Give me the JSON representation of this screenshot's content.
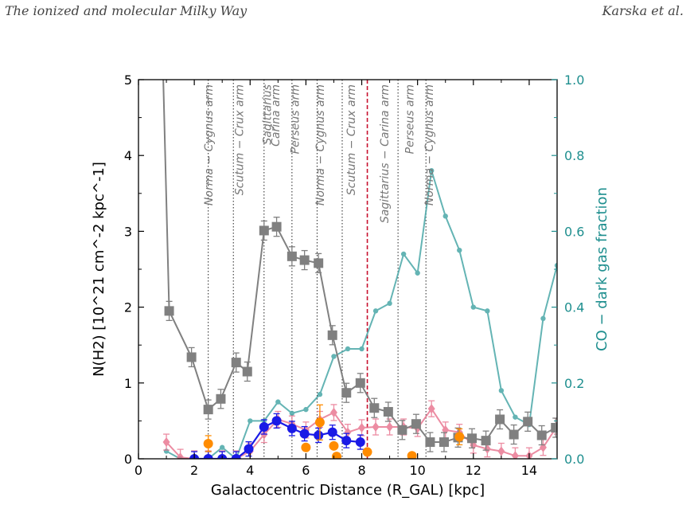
{
  "header": {
    "left": "The ionized and molecular Milky Way",
    "right": "Karska et al."
  },
  "chart_data": {
    "type": "line",
    "xlabel": "Galactocentric Distance (R_GAL) [kpc]",
    "ylabel": "N(H2) [10^21 cm^-2 kpc^-1]",
    "y2label": "CO − dark gas fraction",
    "xlim": [
      0,
      15
    ],
    "ylim": [
      0,
      5
    ],
    "y2lim": [
      0,
      1
    ],
    "x_ticks": [
      0,
      2,
      4,
      6,
      8,
      10,
      12,
      14
    ],
    "y_ticks": [
      0,
      1,
      2,
      3,
      4,
      5
    ],
    "y2_ticks": [
      "0.0",
      "0.2",
      "0.4",
      "0.6",
      "0.8",
      "1.0"
    ],
    "grid": false,
    "colors": {
      "gray": "#808080",
      "teal": "#4aa8a8",
      "pink": "#e8708c",
      "blue": "#1a1ae6",
      "orange": "#ff8c00",
      "sun_line": "#c8102e"
    },
    "series": [
      {
        "id": "gray_squares",
        "axis": "left",
        "marker": "square",
        "x": [
          0.75,
          1.1,
          1.9,
          2.5,
          2.95,
          3.5,
          3.9,
          4.5,
          4.95,
          5.5,
          5.95,
          6.45,
          6.95,
          7.45,
          7.95,
          8.45,
          8.95,
          9.45,
          9.95,
          10.45,
          10.95,
          11.45,
          11.95,
          12.45,
          12.95,
          13.45,
          13.95,
          14.45,
          14.95
        ],
        "y": [
          7.0,
          1.95,
          1.34,
          0.65,
          0.79,
          1.27,
          1.15,
          3.01,
          3.06,
          2.67,
          2.62,
          2.58,
          1.63,
          0.87,
          1.0,
          0.67,
          0.62,
          0.38,
          0.46,
          0.22,
          0.22,
          0.28,
          0.27,
          0.24,
          0.52,
          0.32,
          0.49,
          0.31,
          0.41
        ]
      },
      {
        "id": "teal_fraction",
        "axis": "right",
        "marker": "circle",
        "x": [
          1.0,
          1.5,
          2.0,
          2.5,
          3.0,
          3.5,
          4.0,
          4.5,
          5.0,
          5.5,
          6.0,
          6.5,
          7.0,
          7.5,
          8.0,
          8.5,
          9.0,
          9.5,
          10.0,
          10.5,
          11.0,
          11.5,
          12.0,
          12.5,
          13.0,
          13.5,
          14.0,
          14.5,
          15.0
        ],
        "y": [
          0.02,
          0.0,
          0.0,
          0.0,
          0.03,
          0.0,
          0.1,
          0.1,
          0.15,
          0.12,
          0.13,
          0.17,
          0.27,
          0.29,
          0.29,
          0.39,
          0.41,
          0.54,
          0.49,
          0.76,
          0.64,
          0.55,
          0.4,
          0.39,
          0.18,
          0.11,
          0.09,
          0.37,
          0.51
        ]
      },
      {
        "id": "pink_diamonds",
        "axis": "left",
        "marker": "diamond",
        "x": [
          1.0,
          1.5,
          2.0,
          2.5,
          3.0,
          3.5,
          4.0,
          4.5,
          5.0,
          5.5,
          6.0,
          6.5,
          7.0,
          7.5,
          8.0,
          8.5,
          9.0,
          9.5,
          10.0,
          10.5,
          11.0,
          11.5,
          12.0,
          12.5,
          13.0,
          13.5,
          14.0,
          14.5,
          15.0
        ],
        "y": [
          0.22,
          0.02,
          0.0,
          0.0,
          0.0,
          0.0,
          0.1,
          0.32,
          0.52,
          0.46,
          0.38,
          0.52,
          0.61,
          0.35,
          0.41,
          0.42,
          0.42,
          0.42,
          0.4,
          0.66,
          0.38,
          0.35,
          0.18,
          0.13,
          0.1,
          0.04,
          0.04,
          0.15,
          0.43
        ]
      },
      {
        "id": "blue_circles",
        "axis": "left",
        "marker": "circle",
        "x": [
          2.0,
          2.5,
          3.0,
          3.5,
          3.95,
          4.5,
          4.95,
          5.5,
          5.95,
          6.45,
          6.95,
          7.45,
          7.95
        ],
        "y": [
          0.0,
          0.0,
          0.0,
          0.0,
          0.13,
          0.42,
          0.5,
          0.4,
          0.33,
          0.31,
          0.35,
          0.24,
          0.22
        ]
      },
      {
        "id": "orange_circles",
        "axis": "left",
        "marker": "circle",
        "x": [
          2.5,
          6.0,
          6.5,
          7.0,
          7.1,
          8.2,
          9.8,
          11.5
        ],
        "y": [
          0.2,
          0.15,
          0.48,
          0.17,
          0.03,
          0.09,
          0.04,
          0.29
        ]
      }
    ],
    "arm_lines": [
      2.5,
      3.4,
      4.5,
      5.5,
      6.4,
      7.3,
      9.3,
      10.3
    ],
    "arm_labels": [
      {
        "x": 2.65,
        "text": "Norma − Cygnus arm"
      },
      {
        "x": 3.75,
        "text": "Scutum − Crux arm"
      },
      {
        "x": 4.75,
        "text": "Sagittarius"
      },
      {
        "x": 5.05,
        "text": "Carina arm"
      },
      {
        "x": 5.75,
        "text": "Perseus arm"
      },
      {
        "x": 6.65,
        "text": "Norma − Cygnus arm"
      },
      {
        "x": 7.75,
        "text": "Scutum − Crux arm"
      },
      {
        "x": 8.95,
        "text": "Sagittarius − Carina arm"
      },
      {
        "x": 9.85,
        "text": "Perseus arm"
      },
      {
        "x": 10.55,
        "text": "Norma − Cygnus arm"
      }
    ],
    "sun_position": 8.2
  }
}
